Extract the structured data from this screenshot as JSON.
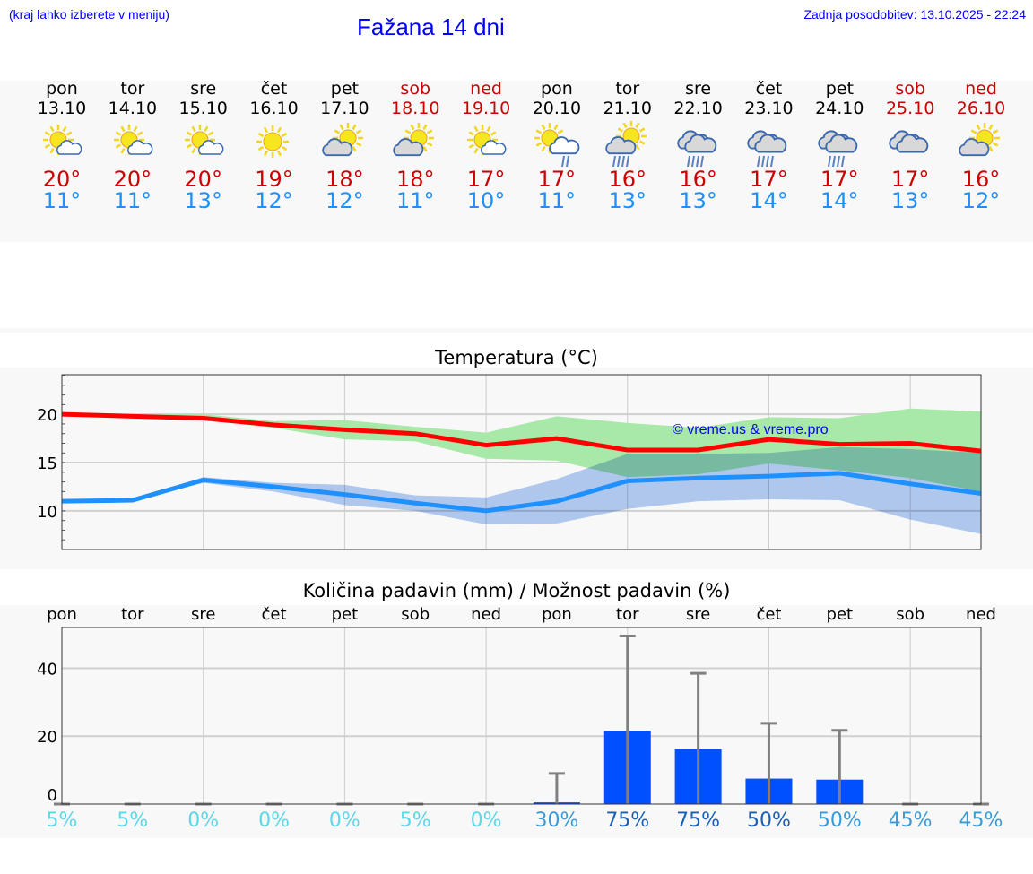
{
  "header": {
    "hint": "(kraj lahko izberete v meniju)",
    "title": "Fažana 14 dni",
    "updated": "Zadnja posodobitev: 13.10.2025 - 22:24"
  },
  "days": [
    {
      "name": "pon",
      "date": "13.10",
      "weekend": false,
      "icon": "sun-small-cloud",
      "max": "20°",
      "min": "11°"
    },
    {
      "name": "tor",
      "date": "14.10",
      "weekend": false,
      "icon": "sun-small-cloud",
      "max": "20°",
      "min": "11°"
    },
    {
      "name": "sre",
      "date": "15.10",
      "weekend": false,
      "icon": "sun-small-cloud",
      "max": "20°",
      "min": "13°"
    },
    {
      "name": "čet",
      "date": "16.10",
      "weekend": false,
      "icon": "sun",
      "max": "19°",
      "min": "12°"
    },
    {
      "name": "pet",
      "date": "17.10",
      "weekend": false,
      "icon": "cloud-sun",
      "max": "18°",
      "min": "12°"
    },
    {
      "name": "sob",
      "date": "18.10",
      "weekend": true,
      "icon": "cloud-sun",
      "max": "18°",
      "min": "11°"
    },
    {
      "name": "ned",
      "date": "19.10",
      "weekend": true,
      "icon": "sun-small-cloud",
      "max": "17°",
      "min": "10°"
    },
    {
      "name": "pon",
      "date": "20.10",
      "weekend": false,
      "icon": "sun-cloud-rain",
      "max": "17°",
      "min": "11°"
    },
    {
      "name": "tor",
      "date": "21.10",
      "weekend": false,
      "icon": "cloud-sun-rain",
      "max": "16°",
      "min": "13°"
    },
    {
      "name": "sre",
      "date": "22.10",
      "weekend": false,
      "icon": "cloudy-rain",
      "max": "16°",
      "min": "13°"
    },
    {
      "name": "čet",
      "date": "23.10",
      "weekend": false,
      "icon": "cloudy-rain",
      "max": "17°",
      "min": "14°"
    },
    {
      "name": "pet",
      "date": "24.10",
      "weekend": false,
      "icon": "cloudy-rain",
      "max": "17°",
      "min": "14°"
    },
    {
      "name": "sob",
      "date": "25.10",
      "weekend": true,
      "icon": "cloudy",
      "max": "17°",
      "min": "13°"
    },
    {
      "name": "ned",
      "date": "26.10",
      "weekend": true,
      "icon": "cloud-sun",
      "max": "16°",
      "min": "12°"
    }
  ],
  "colors": {
    "weekday": "#000000",
    "weekend": "#cc0000",
    "max": "#ff0000",
    "min": "#1e90ff",
    "max_band": "#a8e8a8",
    "min_band": "#a8c4f2",
    "bar": "#0050ff",
    "whisker": "#808080"
  },
  "chart_data": [
    {
      "type": "line",
      "title": "Temperatura (°C)",
      "ylim": [
        6,
        24.1
      ],
      "yticks": [
        10,
        15,
        20
      ],
      "watermark": "© vreme.us & vreme.pro",
      "x": [
        0,
        1,
        2,
        3,
        4,
        5,
        6,
        7,
        8,
        9,
        10,
        11,
        12,
        13
      ],
      "series": [
        {
          "name": "max",
          "values": [
            20.0,
            19.8,
            19.6,
            18.9,
            18.4,
            18.0,
            16.8,
            17.5,
            16.3,
            16.3,
            17.4,
            16.9,
            17.0,
            16.2
          ],
          "upper": [
            20.1,
            20.0,
            20.0,
            19.3,
            19.4,
            18.7,
            18.1,
            19.8,
            19.1,
            18.6,
            19.7,
            19.6,
            20.6,
            20.3
          ],
          "lower": [
            19.9,
            19.6,
            19.4,
            18.6,
            17.4,
            17.2,
            15.4,
            15.2,
            13.5,
            13.8,
            14.9,
            14.2,
            13.4,
            12.0
          ]
        },
        {
          "name": "min",
          "values": [
            11.0,
            11.1,
            13.2,
            12.5,
            11.7,
            10.8,
            10.0,
            11.0,
            13.1,
            13.4,
            13.6,
            13.9,
            12.8,
            11.8
          ],
          "upper": [
            11.1,
            11.2,
            13.5,
            12.9,
            12.7,
            11.6,
            11.4,
            13.3,
            15.9,
            15.9,
            16.0,
            16.6,
            16.4,
            16.0
          ],
          "lower": [
            10.9,
            11.0,
            12.9,
            12.0,
            10.6,
            10.0,
            8.6,
            8.7,
            10.2,
            11.0,
            11.2,
            11.1,
            9.1,
            7.6
          ]
        }
      ]
    },
    {
      "type": "bar",
      "title": "Količina padavin (mm) / Možnost padavin (%)",
      "ylim": [
        0,
        52
      ],
      "yticks": [
        0,
        20,
        40
      ],
      "categories": [
        "pon",
        "tor",
        "sre",
        "čet",
        "pet",
        "sob",
        "ned",
        "pon",
        "tor",
        "sre",
        "čet",
        "pet",
        "sob",
        "ned"
      ],
      "values": [
        0,
        0,
        0,
        0,
        0,
        0,
        0,
        0.5,
        21.5,
        16.2,
        7.5,
        7.2,
        0,
        0
      ],
      "max_values": [
        0,
        0,
        0,
        0,
        0,
        0,
        0,
        9,
        49.5,
        38.5,
        23.8,
        21.7,
        0,
        0
      ],
      "probability": [
        "5%",
        "5%",
        "0%",
        "0%",
        "0%",
        "5%",
        "0%",
        "30%",
        "75%",
        "75%",
        "50%",
        "50%",
        "45%",
        "45%"
      ],
      "probability_colors": [
        "#5ad7e8",
        "#5ad7e8",
        "#5ad7e8",
        "#5ad7e8",
        "#5ad7e8",
        "#5ad7e8",
        "#5ad7e8",
        "#3a9ad8",
        "#1a5fb4",
        "#1a5fb4",
        "#1a5fb4",
        "#3a9ad8",
        "#3a9ad8",
        "#3a9ad8"
      ]
    }
  ]
}
